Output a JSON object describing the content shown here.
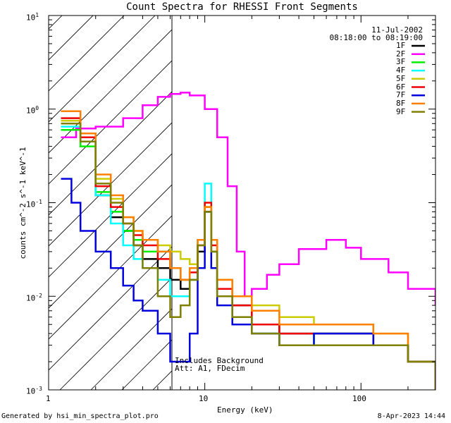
{
  "chart_data": {
    "type": "line",
    "title": "Count Spectra for RHESSI Front Segments",
    "xlabel": "Energy (keV)",
    "ylabel": "counts cm^-2 s^-1 keV^-1",
    "x_scale": "log",
    "y_scale": "log",
    "xlim": [
      1,
      300
    ],
    "ylim": [
      0.001,
      10
    ],
    "x_tick_labels": [
      "1",
      "10",
      "100"
    ],
    "y_tick_labels": [
      "10^-3",
      "10^-2",
      "10^-1",
      "10^0",
      "10^1"
    ],
    "date": "11-Jul-2002",
    "time_range": "08:18:00 to 08:19:00",
    "shaded_region_upper_kev": 6,
    "annotations": [
      "Includes Background",
      "Att: A1, FDecim"
    ],
    "series": [
      {
        "name": "1F",
        "color": "#000000",
        "x": [
          1.2,
          1.6,
          2.0,
          2.5,
          3.0,
          3.5,
          4.0,
          5.0,
          6.0,
          7.0,
          8.0,
          9.0,
          10.0,
          11.0,
          12.0,
          15.0,
          20.0,
          30.0,
          50.0,
          80.0,
          120.0,
          200.0,
          300.0
        ],
        "y": [
          0.6,
          0.45,
          0.12,
          0.07,
          0.05,
          0.035,
          0.025,
          0.02,
          0.015,
          0.012,
          0.015,
          0.03,
          0.08,
          0.03,
          0.012,
          0.008,
          0.005,
          0.004,
          0.004,
          0.004,
          0.003,
          0.002,
          0.001
        ]
      },
      {
        "name": "2F",
        "color": "#ff00ff",
        "x": [
          1.2,
          1.5,
          2.0,
          3.0,
          4.0,
          5.0,
          6.0,
          7.0,
          8.0,
          10.0,
          12.0,
          14.0,
          16.0,
          18.0,
          20.0,
          25.0,
          30.0,
          40.0,
          60.0,
          80.0,
          100.0,
          150.0,
          200.0,
          300.0
        ],
        "y": [
          0.5,
          0.62,
          0.65,
          0.8,
          1.1,
          1.35,
          1.45,
          1.5,
          1.4,
          1.0,
          0.5,
          0.15,
          0.03,
          0.01,
          0.012,
          0.017,
          0.022,
          0.032,
          0.04,
          0.033,
          0.025,
          0.018,
          0.012,
          0.008
        ]
      },
      {
        "name": "3F",
        "color": "#00ee00",
        "x": [
          1.2,
          1.6,
          2.0,
          2.5,
          3.0,
          3.5,
          4.0,
          5.0,
          6.0,
          7.0,
          8.0,
          9.0,
          10.0,
          11.0,
          12.0,
          15.0,
          20.0,
          30.0,
          50.0,
          80.0,
          120.0,
          200.0,
          300.0
        ],
        "y": [
          0.6,
          0.4,
          0.13,
          0.08,
          0.05,
          0.04,
          0.03,
          0.03,
          0.02,
          0.015,
          0.02,
          0.04,
          0.09,
          0.03,
          0.01,
          0.006,
          0.004,
          0.003,
          0.004,
          0.004,
          0.003,
          0.002,
          0.001
        ]
      },
      {
        "name": "4F",
        "color": "#00ffff",
        "x": [
          1.2,
          1.6,
          2.0,
          2.5,
          3.0,
          3.5,
          4.0,
          5.0,
          6.0,
          7.0,
          8.0,
          9.0,
          10.0,
          11.0,
          12.0,
          15.0,
          20.0,
          30.0,
          50.0,
          80.0,
          120.0,
          200.0,
          300.0
        ],
        "y": [
          0.65,
          0.45,
          0.12,
          0.06,
          0.035,
          0.025,
          0.02,
          0.015,
          0.01,
          0.01,
          0.015,
          0.04,
          0.16,
          0.04,
          0.012,
          0.006,
          0.004,
          0.003,
          0.004,
          0.004,
          0.003,
          0.002,
          0.001
        ]
      },
      {
        "name": "5F",
        "color": "#cccc00",
        "x": [
          1.2,
          1.6,
          2.0,
          2.5,
          3.0,
          3.5,
          4.0,
          5.0,
          6.0,
          7.0,
          8.0,
          9.0,
          10.0,
          11.0,
          12.0,
          15.0,
          20.0,
          30.0,
          50.0,
          80.0,
          120.0,
          200.0,
          300.0
        ],
        "y": [
          0.75,
          0.5,
          0.18,
          0.11,
          0.07,
          0.05,
          0.04,
          0.035,
          0.03,
          0.025,
          0.022,
          0.035,
          0.09,
          0.04,
          0.015,
          0.01,
          0.008,
          0.006,
          0.005,
          0.005,
          0.004,
          0.002,
          0.001
        ]
      },
      {
        "name": "6F",
        "color": "#ee0000",
        "x": [
          1.2,
          1.6,
          2.0,
          2.5,
          3.0,
          3.5,
          4.0,
          5.0,
          6.0,
          7.0,
          8.0,
          9.0,
          10.0,
          11.0,
          12.0,
          15.0,
          20.0,
          30.0,
          50.0,
          80.0,
          120.0,
          200.0,
          300.0
        ],
        "y": [
          0.8,
          0.5,
          0.15,
          0.09,
          0.06,
          0.045,
          0.035,
          0.025,
          0.02,
          0.015,
          0.018,
          0.035,
          0.1,
          0.035,
          0.012,
          0.008,
          0.005,
          0.004,
          0.004,
          0.004,
          0.003,
          0.002,
          0.001
        ]
      },
      {
        "name": "7F",
        "color": "#0000dd",
        "x": [
          1.2,
          1.4,
          1.6,
          2.0,
          2.5,
          3.0,
          3.5,
          4.0,
          5.0,
          6.0,
          7.0,
          8.0,
          9.0,
          10.0,
          11.0,
          12.0,
          15.0,
          20.0,
          30.0,
          50.0,
          80.0,
          120.0,
          200.0,
          300.0
        ],
        "y": [
          0.18,
          0.1,
          0.05,
          0.03,
          0.02,
          0.013,
          0.009,
          0.007,
          0.004,
          0.002,
          0.002,
          0.004,
          0.02,
          0.08,
          0.02,
          0.008,
          0.005,
          0.004,
          0.003,
          0.004,
          0.004,
          0.003,
          0.002,
          0.001
        ]
      },
      {
        "name": "8F",
        "color": "#ff8000",
        "x": [
          1.2,
          1.6,
          2.0,
          2.5,
          3.0,
          3.5,
          4.0,
          5.0,
          6.0,
          7.0,
          8.0,
          9.0,
          10.0,
          11.0,
          12.0,
          15.0,
          20.0,
          30.0,
          50.0,
          80.0,
          120.0,
          200.0,
          300.0
        ],
        "y": [
          0.95,
          0.55,
          0.2,
          0.12,
          0.07,
          0.05,
          0.04,
          0.03,
          0.02,
          0.015,
          0.02,
          0.04,
          0.09,
          0.04,
          0.015,
          0.01,
          0.007,
          0.005,
          0.005,
          0.005,
          0.004,
          0.002,
          0.001
        ]
      },
      {
        "name": "9F",
        "color": "#808000",
        "x": [
          1.2,
          1.6,
          2.0,
          2.5,
          3.0,
          3.5,
          4.0,
          5.0,
          6.0,
          7.0,
          8.0,
          9.0,
          10.0,
          11.0,
          12.0,
          15.0,
          20.0,
          30.0,
          50.0,
          80.0,
          120.0,
          200.0,
          300.0
        ],
        "y": [
          0.7,
          0.45,
          0.16,
          0.1,
          0.06,
          0.035,
          0.02,
          0.01,
          0.006,
          0.008,
          0.015,
          0.035,
          0.08,
          0.03,
          0.01,
          0.006,
          0.004,
          0.003,
          0.003,
          0.003,
          0.003,
          0.002,
          0.001
        ]
      }
    ]
  },
  "footer": {
    "generated_by": "Generated by hsi_min_spectra_plot.pro",
    "timestamp": "8-Apr-2023 14:44"
  }
}
